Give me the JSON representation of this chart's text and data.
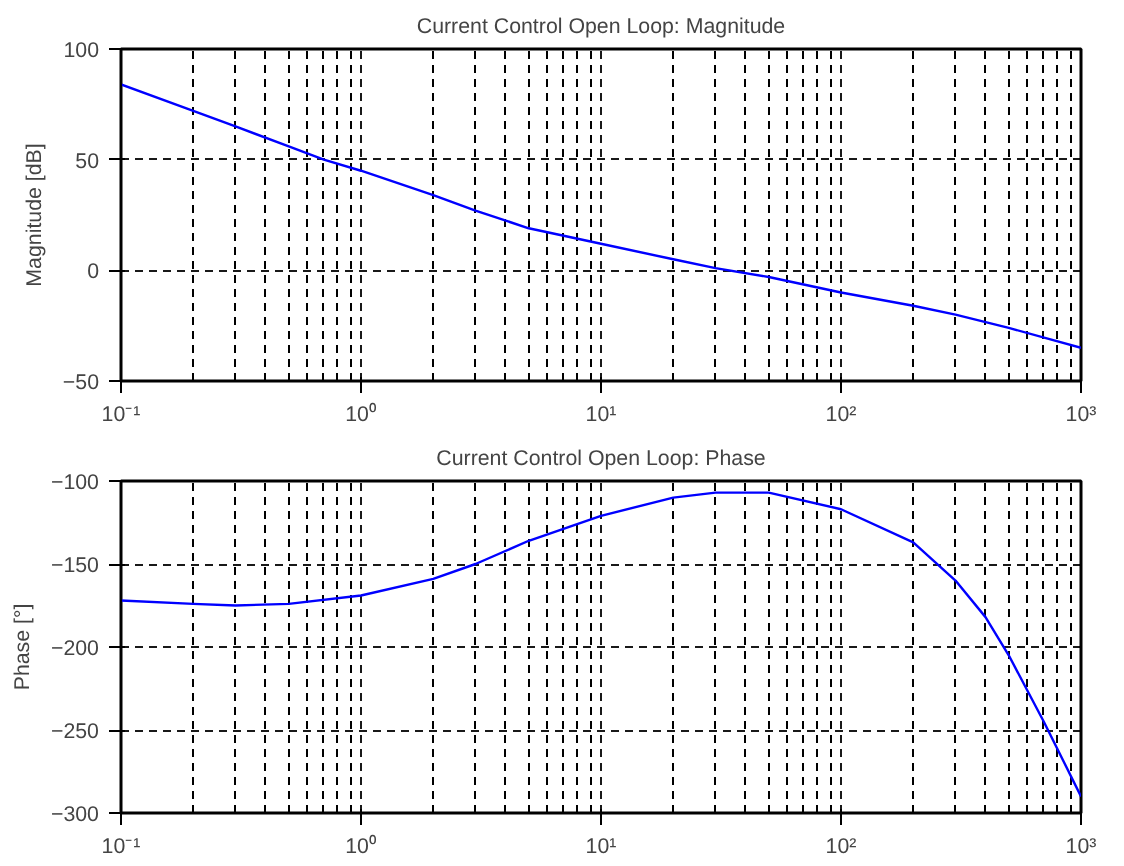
{
  "chart_data": [
    {
      "type": "line",
      "title": "Current Control Open Loop: Magnitude",
      "ylabel": "Magnitude [dB]",
      "log": "x",
      "grid": true,
      "line_style": "solid",
      "x": [
        0.1,
        0.2,
        0.3,
        0.5,
        0.7,
        1,
        2,
        3,
        5,
        10,
        20,
        30,
        50,
        100,
        200,
        300,
        500,
        1000
      ],
      "series": [
        {
          "color": "#0000ff",
          "values": [
            84,
            72,
            65,
            56,
            50,
            45,
            34,
            27,
            19,
            12,
            5,
            1,
            -3,
            -10,
            -16,
            -20,
            -26,
            -35
          ]
        }
      ],
      "xlim": [
        0.1,
        1000
      ],
      "ylim": [
        -50,
        100
      ],
      "xticks": [
        {
          "value": 0.1,
          "label": "10⁻¹"
        },
        {
          "value": 1,
          "label": "10⁰"
        },
        {
          "value": 10,
          "label": "10¹"
        },
        {
          "value": 100,
          "label": "10²"
        },
        {
          "value": 1000,
          "label": "10³"
        }
      ],
      "yticks": [
        -50,
        0,
        50,
        100
      ]
    },
    {
      "type": "line",
      "title": "Current Control Open Loop: Phase",
      "ylabel": "Phase [°]",
      "log": "x",
      "grid": true,
      "line_style": "solid",
      "x": [
        0.1,
        0.2,
        0.3,
        0.5,
        1,
        2,
        3,
        5,
        10,
        20,
        30,
        50,
        100,
        200,
        300,
        400,
        500,
        700,
        1000
      ],
      "series": [
        {
          "color": "#0000ff",
          "values": [
            -172,
            -174,
            -175,
            -174,
            -169,
            -159,
            -150,
            -136,
            -121,
            -110,
            -107,
            -107,
            -117,
            -137,
            -160,
            -182,
            -205,
            -245,
            -290
          ]
        }
      ],
      "xlim": [
        0.1,
        1000
      ],
      "ylim": [
        -300,
        -100
      ],
      "xticks": [
        {
          "value": 0.1,
          "label": "10⁻¹"
        },
        {
          "value": 1,
          "label": "10⁰"
        },
        {
          "value": 10,
          "label": "10¹"
        },
        {
          "value": 100,
          "label": "10²"
        },
        {
          "value": 1000,
          "label": "10³"
        }
      ],
      "yticks": [
        -300,
        -250,
        -200,
        -150,
        -100
      ]
    }
  ]
}
